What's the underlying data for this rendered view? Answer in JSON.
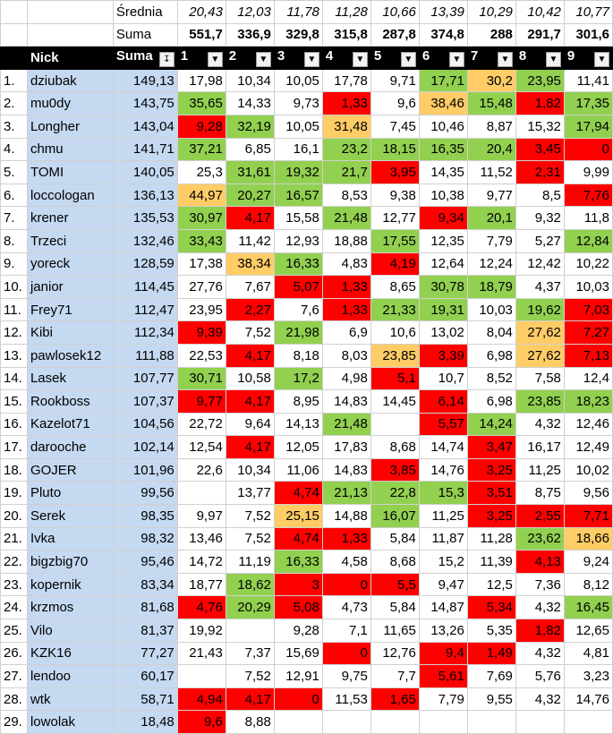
{
  "summary": {
    "avg_label": "Średnia",
    "sum_label": "Suma",
    "averages": [
      "20,43",
      "12,03",
      "11,78",
      "11,28",
      "10,66",
      "13,39",
      "10,29",
      "10,42",
      "10,77"
    ],
    "sums": [
      "551,7",
      "336,9",
      "329,8",
      "315,8",
      "287,8",
      "374,8",
      "288",
      "291,7",
      "301,6"
    ]
  },
  "headers": {
    "nick": "Nick",
    "sum": "Suma",
    "rounds": [
      "1",
      "2",
      "3",
      "4",
      "5",
      "6",
      "7",
      "8",
      "9"
    ]
  },
  "colors": {
    "green": "#92d050",
    "red": "#ff0000",
    "yellow": "#ffcc66",
    "nick_bg": "#c5d9f1"
  },
  "rows": [
    {
      "idx": "1.",
      "nick": "dziubak",
      "sum": "149,13",
      "vals": [
        "17,98",
        "10,34",
        "10,05",
        "17,78",
        "9,71",
        "17,71",
        "30,2",
        "23,95",
        "11,41"
      ],
      "hl": [
        "",
        "",
        "",
        "",
        "",
        "g",
        "y",
        "g",
        ""
      ]
    },
    {
      "idx": "2.",
      "nick": "mu0dy",
      "sum": "143,75",
      "vals": [
        "35,65",
        "14,33",
        "9,73",
        "1,33",
        "9,6",
        "38,46",
        "15,48",
        "1,82",
        "17,35"
      ],
      "hl": [
        "g",
        "",
        "",
        "r",
        "",
        "y",
        "g",
        "r",
        "g"
      ]
    },
    {
      "idx": "3.",
      "nick": "Longher",
      "sum": "143,04",
      "vals": [
        "9,28",
        "32,19",
        "10,05",
        "31,48",
        "7,45",
        "10,46",
        "8,87",
        "15,32",
        "17,94"
      ],
      "hl": [
        "r",
        "g",
        "",
        "y",
        "",
        "",
        "",
        "",
        "g"
      ]
    },
    {
      "idx": "4.",
      "nick": "chmu",
      "sum": "141,71",
      "vals": [
        "37,21",
        "6,85",
        "16,1",
        "23,2",
        "18,15",
        "16,35",
        "20,4",
        "3,45",
        "0"
      ],
      "hl": [
        "g",
        "",
        "",
        "g",
        "g",
        "g",
        "g",
        "r",
        "r"
      ]
    },
    {
      "idx": "5.",
      "nick": "TOMI",
      "sum": "140,05",
      "vals": [
        "25,3",
        "31,61",
        "19,32",
        "21,7",
        "3,95",
        "14,35",
        "11,52",
        "2,31",
        "9,99"
      ],
      "hl": [
        "",
        "g",
        "g",
        "g",
        "r",
        "",
        "",
        "r",
        ""
      ]
    },
    {
      "idx": "6.",
      "nick": "loccologan",
      "sum": "136,13",
      "vals": [
        "44,97",
        "20,27",
        "16,57",
        "8,53",
        "9,38",
        "10,38",
        "9,77",
        "8,5",
        "7,76"
      ],
      "hl": [
        "y",
        "g",
        "g",
        "",
        "",
        "",
        "",
        "",
        "r"
      ]
    },
    {
      "idx": "7.",
      "nick": "krener",
      "sum": "135,53",
      "vals": [
        "30,97",
        "4,17",
        "15,58",
        "21,48",
        "12,77",
        "9,34",
        "20,1",
        "9,32",
        "11,8"
      ],
      "hl": [
        "g",
        "r",
        "",
        "g",
        "",
        "r",
        "g",
        "",
        ""
      ]
    },
    {
      "idx": "8.",
      "nick": "Trzeci",
      "sum": "132,46",
      "vals": [
        "33,43",
        "11,42",
        "12,93",
        "18,88",
        "17,55",
        "12,35",
        "7,79",
        "5,27",
        "12,84"
      ],
      "hl": [
        "g",
        "",
        "",
        "",
        "g",
        "",
        "",
        "",
        "g"
      ]
    },
    {
      "idx": "9.",
      "nick": "yoreck",
      "sum": "128,59",
      "vals": [
        "17,38",
        "38,34",
        "16,33",
        "4,83",
        "4,19",
        "12,64",
        "12,24",
        "12,42",
        "10,22"
      ],
      "hl": [
        "",
        "y",
        "g",
        "",
        "r",
        "",
        "",
        "",
        ""
      ]
    },
    {
      "idx": "10.",
      "nick": "janior",
      "sum": "114,45",
      "vals": [
        "27,76",
        "7,67",
        "5,07",
        "1,33",
        "8,65",
        "30,78",
        "18,79",
        "4,37",
        "10,03"
      ],
      "hl": [
        "",
        "",
        "r",
        "r",
        "",
        "g",
        "g",
        "",
        ""
      ]
    },
    {
      "idx": "11.",
      "nick": "Frey71",
      "sum": "112,47",
      "vals": [
        "23,95",
        "2,27",
        "7,6",
        "1,33",
        "21,33",
        "19,31",
        "10,03",
        "19,62",
        "7,03"
      ],
      "hl": [
        "",
        "r",
        "",
        "r",
        "g",
        "g",
        "",
        "g",
        "r"
      ]
    },
    {
      "idx": "12.",
      "nick": "Kibi",
      "sum": "112,34",
      "vals": [
        "9,39",
        "7,52",
        "21,98",
        "6,9",
        "10,6",
        "13,02",
        "8,04",
        "27,62",
        "7,27"
      ],
      "hl": [
        "r",
        "",
        "g",
        "",
        "",
        "",
        "",
        "y",
        "r"
      ]
    },
    {
      "idx": "13.",
      "nick": "pawlosek12",
      "sum": "111,88",
      "vals": [
        "22,53",
        "4,17",
        "8,18",
        "8,03",
        "23,85",
        "3,39",
        "6,98",
        "27,62",
        "7,13"
      ],
      "hl": [
        "",
        "r",
        "",
        "",
        "y",
        "r",
        "",
        "y",
        "r"
      ]
    },
    {
      "idx": "14.",
      "nick": "Lasek",
      "sum": "107,77",
      "vals": [
        "30,71",
        "10,58",
        "17,2",
        "4,98",
        "5,1",
        "10,7",
        "8,52",
        "7,58",
        "12,4"
      ],
      "hl": [
        "g",
        "",
        "g",
        "",
        "r",
        "",
        "",
        "",
        ""
      ]
    },
    {
      "idx": "15.",
      "nick": "Rookboss",
      "sum": "107,37",
      "vals": [
        "9,77",
        "4,17",
        "8,95",
        "14,83",
        "14,45",
        "6,14",
        "6,98",
        "23,85",
        "18,23"
      ],
      "hl": [
        "r",
        "r",
        "",
        "",
        "",
        "r",
        "",
        "g",
        "g"
      ]
    },
    {
      "idx": "16.",
      "nick": "Kazelot71",
      "sum": "104,56",
      "vals": [
        "22,72",
        "9,64",
        "14,13",
        "21,48",
        "",
        "5,57",
        "14,24",
        "4,32",
        "12,46"
      ],
      "hl": [
        "",
        "",
        "",
        "g",
        "",
        "r",
        "g",
        "",
        ""
      ]
    },
    {
      "idx": "17.",
      "nick": "darooche",
      "sum": "102,14",
      "vals": [
        "12,54",
        "4,17",
        "12,05",
        "17,83",
        "8,68",
        "14,74",
        "3,47",
        "16,17",
        "12,49"
      ],
      "hl": [
        "",
        "r",
        "",
        "",
        "",
        "",
        "r",
        "",
        ""
      ]
    },
    {
      "idx": "18.",
      "nick": "GOJER",
      "sum": "101,96",
      "vals": [
        "22,6",
        "10,34",
        "11,06",
        "14,83",
        "3,85",
        "14,76",
        "3,25",
        "11,25",
        "10,02"
      ],
      "hl": [
        "",
        "",
        "",
        "",
        "r",
        "",
        "r",
        "",
        ""
      ]
    },
    {
      "idx": "19.",
      "nick": "Pluto",
      "sum": "99,56",
      "vals": [
        "",
        "13,77",
        "4,74",
        "21,13",
        "22,8",
        "15,3",
        "3,51",
        "8,75",
        "9,56"
      ],
      "hl": [
        "",
        "",
        "r",
        "g",
        "g",
        "g",
        "r",
        "",
        ""
      ]
    },
    {
      "idx": "20.",
      "nick": "Serek",
      "sum": "98,35",
      "vals": [
        "9,97",
        "7,52",
        "25,15",
        "14,88",
        "16,07",
        "11,25",
        "3,25",
        "2,55",
        "7,71"
      ],
      "hl": [
        "",
        "",
        "y",
        "",
        "g",
        "",
        "r",
        "r",
        "r"
      ]
    },
    {
      "idx": "21.",
      "nick": "Ivka",
      "sum": "98,32",
      "vals": [
        "13,46",
        "7,52",
        "4,74",
        "1,33",
        "5,84",
        "11,87",
        "11,28",
        "23,62",
        "18,66"
      ],
      "hl": [
        "",
        "",
        "r",
        "r",
        "",
        "",
        "",
        "g",
        "y"
      ]
    },
    {
      "idx": "22.",
      "nick": "bigzbig70",
      "sum": "95,46",
      "vals": [
        "14,72",
        "11,19",
        "16,33",
        "4,58",
        "8,68",
        "15,2",
        "11,39",
        "4,13",
        "9,24"
      ],
      "hl": [
        "",
        "",
        "g",
        "",
        "",
        "",
        "",
        "r",
        ""
      ]
    },
    {
      "idx": "23.",
      "nick": "kopernik",
      "sum": "83,34",
      "vals": [
        "18,77",
        "18,62",
        "3",
        "0",
        "5,5",
        "9,47",
        "12,5",
        "7,36",
        "8,12"
      ],
      "hl": [
        "",
        "g",
        "r",
        "r",
        "r",
        "",
        "",
        "",
        ""
      ]
    },
    {
      "idx": "24.",
      "nick": "krzmos",
      "sum": "81,68",
      "vals": [
        "4,76",
        "20,29",
        "5,08",
        "4,73",
        "5,84",
        "14,87",
        "5,34",
        "4,32",
        "16,45"
      ],
      "hl": [
        "r",
        "g",
        "r",
        "",
        "",
        "",
        "r",
        "",
        "g"
      ]
    },
    {
      "idx": "25.",
      "nick": "Vilo",
      "sum": "81,37",
      "vals": [
        "19,92",
        "",
        "9,28",
        "7,1",
        "11,65",
        "13,26",
        "5,35",
        "1,82",
        "12,65"
      ],
      "hl": [
        "",
        "",
        "",
        "",
        "",
        "",
        "",
        "r",
        ""
      ]
    },
    {
      "idx": "26.",
      "nick": "KZK16",
      "sum": "77,27",
      "vals": [
        "21,43",
        "7,37",
        "15,69",
        "0",
        "12,76",
        "9,4",
        "1,49",
        "4,32",
        "4,81"
      ],
      "hl": [
        "",
        "",
        "",
        "r",
        "",
        "r",
        "r",
        "",
        ""
      ]
    },
    {
      "idx": "27.",
      "nick": "lendoo",
      "sum": "60,17",
      "vals": [
        "",
        "7,52",
        "12,91",
        "9,75",
        "7,7",
        "5,61",
        "7,69",
        "5,76",
        "3,23"
      ],
      "hl": [
        "",
        "",
        "",
        "",
        "",
        "r",
        "",
        "",
        ""
      ]
    },
    {
      "idx": "28.",
      "nick": "wtk",
      "sum": "58,71",
      "vals": [
        "4,94",
        "4,17",
        "0",
        "11,53",
        "1,65",
        "7,79",
        "9,55",
        "4,32",
        "14,76"
      ],
      "hl": [
        "r",
        "r",
        "r",
        "",
        "r",
        "",
        "",
        "",
        ""
      ]
    },
    {
      "idx": "29.",
      "nick": "lowolak",
      "sum": "18,48",
      "vals": [
        "9,6",
        "8,88",
        "",
        "",
        "",
        "",
        "",
        "",
        ""
      ],
      "hl": [
        "r",
        "",
        "",
        "",
        "",
        "",
        "",
        "",
        ""
      ]
    }
  ]
}
